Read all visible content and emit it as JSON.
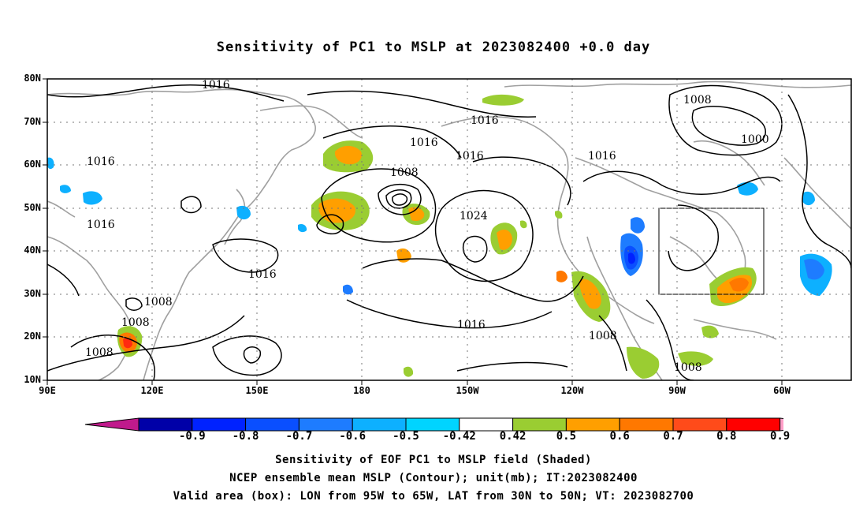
{
  "title": "Sensitivity of PC1 to MSLP at 2023082400 +0.0 day",
  "map": {
    "lat_labels": [
      "80N",
      "70N",
      "60N",
      "50N",
      "40N",
      "30N",
      "20N",
      "10N"
    ],
    "lon_labels": [
      "90E",
      "120E",
      "150E",
      "180",
      "150W",
      "120W",
      "90W",
      "60W"
    ],
    "contour_labels": [
      "1016",
      "1016",
      "1016",
      "1016",
      "1016",
      "1016",
      "1016",
      "1016",
      "1016",
      "1008",
      "1008",
      "1008",
      "1008",
      "1008",
      "1008",
      "1000",
      "1024",
      "1008"
    ],
    "box": {
      "lon_from": "95W",
      "lon_to": "65W",
      "lat_from": "30N",
      "lat_to": "50N"
    }
  },
  "colorbar": {
    "labels": [
      "-0.9",
      "-0.8",
      "-0.7",
      "-0.6",
      "-0.5",
      "-0.42",
      "0.42",
      "0.5",
      "0.6",
      "0.7",
      "0.8",
      "0.9"
    ],
    "colors": [
      "#0000a8",
      "#0022ff",
      "#0a4fff",
      "#1e7cff",
      "#0db0ff",
      "#00d4ff",
      "#ffffff",
      "#9acd32",
      "#ff9f00",
      "#ff7800",
      "#ff4b1a",
      "#ff0000"
    ],
    "low_end_color": "#c01a8c",
    "high_end_color": "#ff9fc8"
  },
  "footer": {
    "line1": "Sensitivity of EOF PC1 to MSLP field (Shaded)",
    "line2": "NCEP ensemble mean MSLP (Contour); unit(mb); IT:2023082400",
    "line3": "Valid area (box): LON from 95W to 65W, LAT from 30N to 50N; VT: 2023082700"
  }
}
